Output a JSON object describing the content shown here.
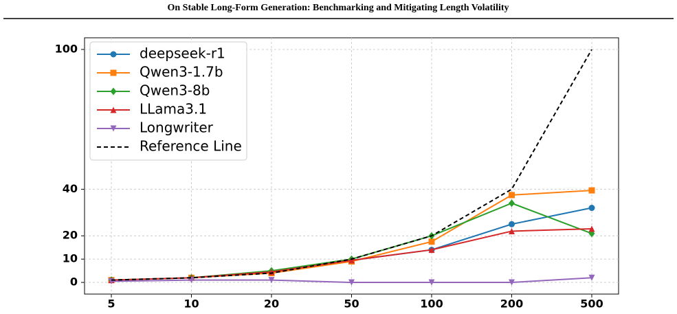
{
  "header": {
    "title": "On Stable Long-Form Generation: Benchmarking and Mitigating Length Volatility"
  },
  "chart_data": {
    "type": "line",
    "categories": [
      "5",
      "10",
      "20",
      "50",
      "100",
      "200",
      "500"
    ],
    "ylim": [
      -5,
      105
    ],
    "yticks": [
      0,
      10,
      20,
      40,
      100
    ],
    "grid": true,
    "legend": "upper left",
    "series": [
      {
        "name": "deepseek-r1",
        "color": "#1f77b4",
        "marker": "circle",
        "values": [
          1,
          2,
          4.5,
          9.5,
          14,
          25,
          32
        ]
      },
      {
        "name": "Qwen3-1.7b",
        "color": "#ff7f0e",
        "marker": "square",
        "values": [
          1,
          2,
          4,
          9,
          17.5,
          37.5,
          39.5
        ]
      },
      {
        "name": "Qwen3-8b",
        "color": "#2ca02c",
        "marker": "diamond",
        "values": [
          1,
          2,
          5,
          10,
          20,
          34,
          21
        ]
      },
      {
        "name": "LLama3.1",
        "color": "#d62728",
        "marker": "triangle-up",
        "values": [
          1,
          2,
          4.5,
          9.5,
          14,
          22,
          23
        ]
      },
      {
        "name": "Longwriter",
        "color": "#9467bd",
        "marker": "triangle-down",
        "values": [
          0.5,
          1,
          1,
          0,
          0,
          0,
          2
        ]
      },
      {
        "name": "Reference Line",
        "color": "#000000",
        "dashed": true,
        "values": [
          1,
          2,
          4,
          10,
          20,
          40,
          100
        ]
      }
    ]
  }
}
